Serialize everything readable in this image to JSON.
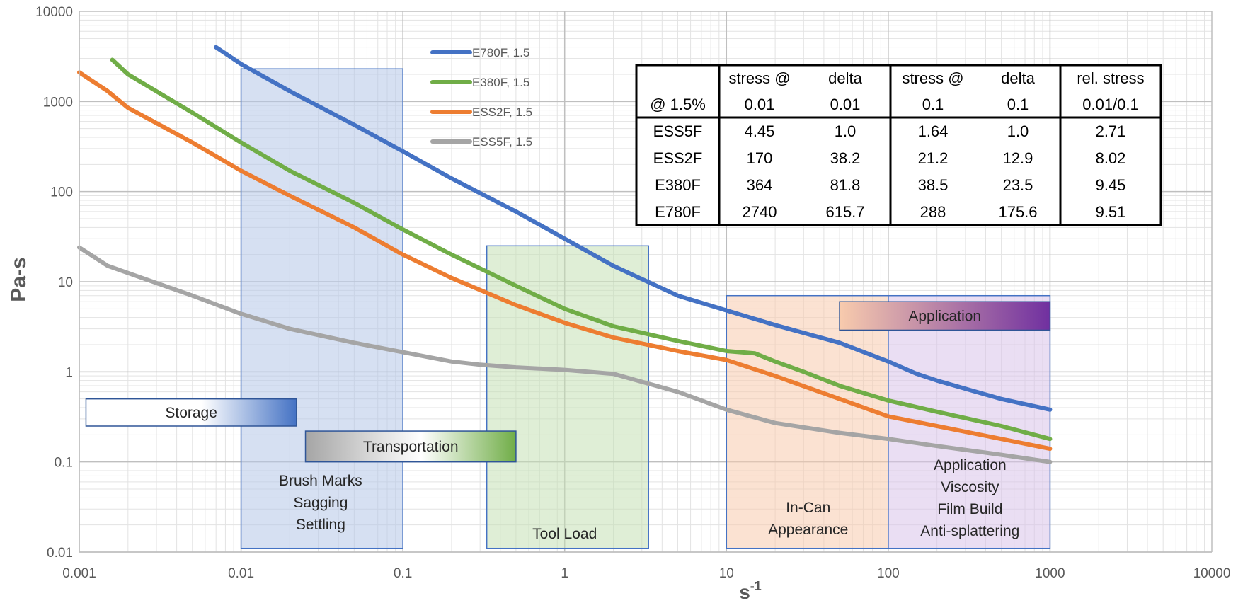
{
  "chart_data": {
    "type": "line",
    "title": "",
    "xlabel": "s",
    "xlabel_superscript": "-1",
    "ylabel": "Pa-s",
    "x_scale": "log",
    "y_scale": "log",
    "xlim": [
      0.001,
      10000
    ],
    "ylim": [
      0.01,
      10000
    ],
    "grid": true,
    "legend_placement": "top-center",
    "x_ticks": [
      "0.001",
      "0.01",
      "0.1",
      "1",
      "10",
      "100",
      "1000",
      "10000"
    ],
    "y_ticks": [
      "0.01",
      "0.1",
      "1",
      "10",
      "100",
      "1000",
      "10000"
    ],
    "series": [
      {
        "name": "E780F, 1.5",
        "color": "#4472C4",
        "x": [
          0.007,
          0.01,
          0.02,
          0.05,
          0.1,
          0.2,
          0.5,
          1,
          2,
          5,
          10,
          20,
          50,
          100,
          150,
          200,
          300,
          500,
          1000
        ],
        "y": [
          4000,
          2600,
          1300,
          550,
          280,
          140,
          60,
          30,
          15,
          7,
          4.8,
          3.3,
          2.1,
          1.3,
          0.95,
          0.8,
          0.65,
          0.5,
          0.38
        ]
      },
      {
        "name": "E380F, 1.5",
        "color": "#70AD47",
        "x": [
          0.0016,
          0.002,
          0.005,
          0.01,
          0.02,
          0.05,
          0.1,
          0.2,
          0.5,
          1,
          2,
          5,
          10,
          15,
          20,
          30,
          50,
          100,
          200,
          500,
          1000
        ],
        "y": [
          2900,
          2000,
          750,
          350,
          170,
          75,
          38,
          20,
          9,
          5,
          3.2,
          2.2,
          1.7,
          1.6,
          1.3,
          1.0,
          0.7,
          0.48,
          0.36,
          0.25,
          0.18
        ]
      },
      {
        "name": "ESS2F, 1.5",
        "color": "#ED7D31",
        "x": [
          0.001,
          0.0015,
          0.002,
          0.005,
          0.01,
          0.02,
          0.05,
          0.1,
          0.2,
          0.5,
          1,
          2,
          5,
          10,
          20,
          50,
          100,
          200,
          500,
          1000
        ],
        "y": [
          2100,
          1300,
          850,
          350,
          170,
          90,
          40,
          20,
          11,
          5.5,
          3.5,
          2.4,
          1.7,
          1.35,
          0.9,
          0.5,
          0.32,
          0.25,
          0.18,
          0.14
        ]
      },
      {
        "name": "ESS5F, 1.5",
        "color": "#A5A5A5",
        "x": [
          0.001,
          0.0015,
          0.002,
          0.005,
          0.01,
          0.02,
          0.05,
          0.1,
          0.2,
          0.3,
          0.5,
          1,
          2,
          5,
          10,
          20,
          50,
          100,
          200,
          500,
          1000
        ],
        "y": [
          24,
          15,
          12.5,
          7,
          4.4,
          3.0,
          2.1,
          1.65,
          1.3,
          1.2,
          1.12,
          1.05,
          0.95,
          0.6,
          0.38,
          0.27,
          0.21,
          0.18,
          0.15,
          0.12,
          0.1
        ]
      }
    ],
    "regions": [
      {
        "id": "brush",
        "lines": [
          "Brush Marks",
          "Sagging",
          "Settling"
        ],
        "x": [
          0.01,
          0.1
        ],
        "y": [
          0.011,
          2300
        ],
        "fill": "#B4C6E7",
        "stroke": "#4472C4"
      },
      {
        "id": "tool",
        "lines": [
          "Tool Load"
        ],
        "x": [
          0.33,
          3.3
        ],
        "y": [
          0.011,
          25
        ],
        "fill": "#C5E0B4",
        "stroke": "#4472C4"
      },
      {
        "id": "incan",
        "lines": [
          "In-Can",
          "Appearance"
        ],
        "x": [
          10,
          100
        ],
        "y": [
          0.011,
          7
        ],
        "fill": "#F8CBAD",
        "stroke": "#4472C4"
      },
      {
        "id": "app",
        "lines": [
          "Application",
          "Viscosity",
          "Film Build",
          "Anti-splattering"
        ],
        "x": [
          100,
          1000
        ],
        "y": [
          0.011,
          7
        ],
        "fill": "#D9C3E9",
        "stroke": "#4472C4"
      }
    ],
    "bands": [
      {
        "id": "storage",
        "label": "Storage",
        "x": [
          0.0011,
          0.022
        ],
        "y": [
          0.25,
          0.5
        ],
        "gradient": [
          "#FFFFFF",
          "#FFFFFF",
          "#4472C4"
        ],
        "text_color": "#262626"
      },
      {
        "id": "transport",
        "label": "Transportation",
        "x": [
          0.025,
          0.5
        ],
        "y": [
          0.1,
          0.22
        ],
        "gradient": [
          "#A5A5A5",
          "#FFFFFF",
          "#70AD47"
        ],
        "text_color": "#262626"
      },
      {
        "id": "application",
        "label": "Application",
        "x": [
          50,
          1000
        ],
        "y": [
          2.9,
          6
        ],
        "gradient": [
          "#F8CBAD",
          "#7030A0"
        ],
        "text_color": "#FFFFFF"
      }
    ],
    "table": {
      "header_row1": [
        "",
        "stress @",
        "delta",
        "stress @",
        "delta",
        "rel. stress"
      ],
      "header_row2": [
        "@ 1.5%",
        "0.01",
        "0.01",
        "0.1",
        "0.1",
        "0.01/0.1"
      ],
      "rows": [
        [
          "ESS5F",
          "4.45",
          "1.0",
          "1.64",
          "1.0",
          "2.71"
        ],
        [
          "ESS2F",
          "170",
          "38.2",
          "21.2",
          "12.9",
          "8.02"
        ],
        [
          "E380F",
          "364",
          "81.8",
          "38.5",
          "23.5",
          "9.45"
        ],
        [
          "E780F",
          "2740",
          "615.7",
          "288",
          "175.6",
          "9.51"
        ]
      ]
    }
  }
}
